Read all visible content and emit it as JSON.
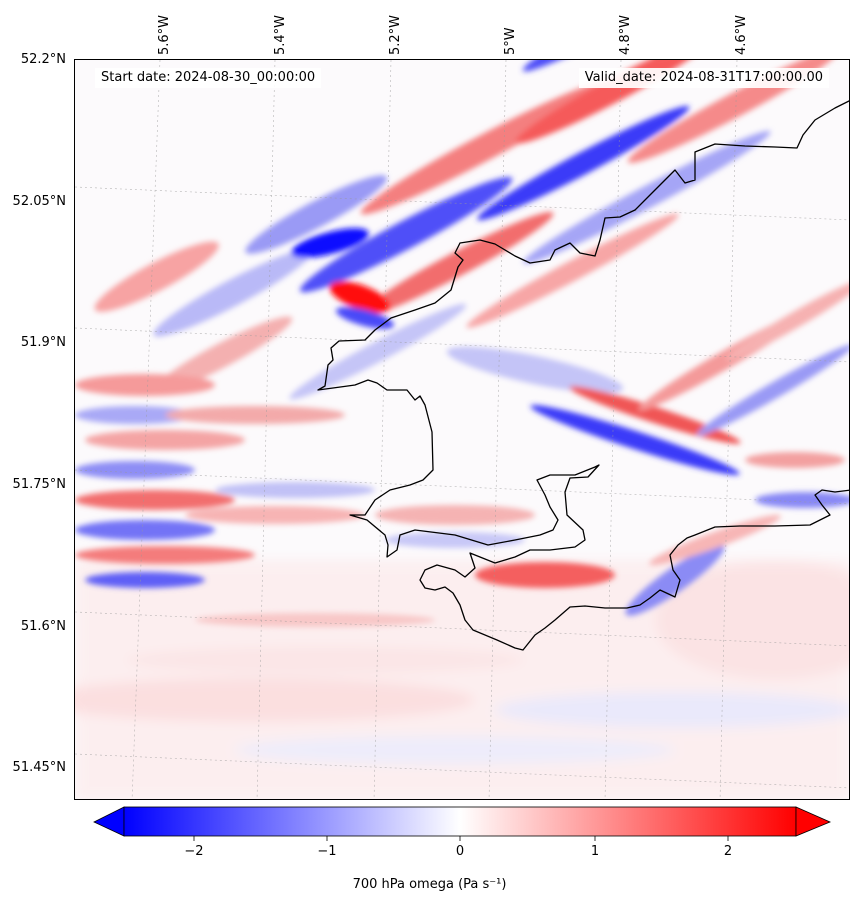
{
  "header": {
    "start_text": "Start date: 2024-08-30_00:00:00",
    "valid_text": "Valid_date: 2024-08-31T17:00:00.00"
  },
  "axes": {
    "lon_labels": [
      "5.6°W",
      "5.4°W",
      "5.2°W",
      "5°W",
      "4.8°W",
      "4.6°W"
    ],
    "lat_labels": [
      "52.2°N",
      "52.05°N",
      "51.9°N",
      "51.75°N",
      "51.6°N",
      "51.45°N"
    ]
  },
  "colorbar": {
    "ticks": [
      "−2",
      "−1",
      "0",
      "1",
      "2"
    ],
    "label": "700 hPa omega (Pa s⁻¹)",
    "range": [
      -2.75,
      2.75
    ],
    "colors": {
      "negative": "#0000ff",
      "zero": "#ffffff",
      "positive": "#ff0000"
    }
  },
  "map": {
    "gridlines": true,
    "colors": {
      "coastline": "#000000",
      "background": "#fcfafc"
    }
  }
}
